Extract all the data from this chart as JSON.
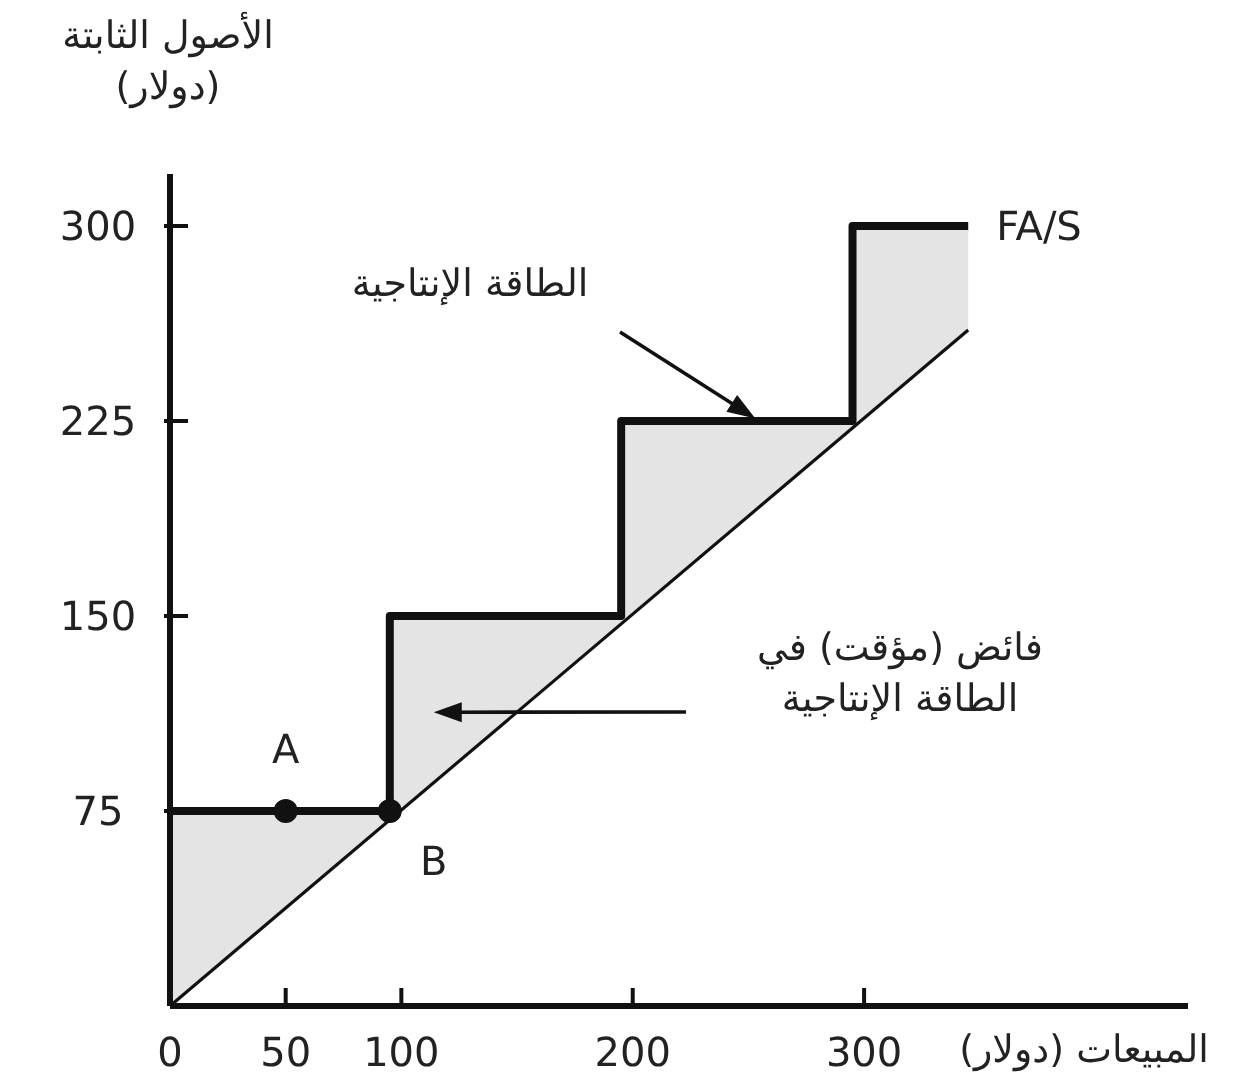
{
  "chart_data": {
    "type": "line",
    "xlabel": "المبيعات (دولار)",
    "ylabel": "الأصول الثابتة\n(دولار)",
    "xlim": [
      0,
      440
    ],
    "ylim": [
      0,
      320
    ],
    "xticks": [
      0,
      50,
      100,
      200,
      300
    ],
    "yticks": [
      75,
      150,
      225,
      300
    ],
    "series": [
      {
        "name": "FA/S",
        "type": "area",
        "color": "#111111",
        "x": [
          0,
          95,
          95,
          195,
          195,
          295,
          295,
          345
        ],
        "values": [
          75,
          75,
          150,
          150,
          225,
          225,
          300,
          300
        ]
      },
      {
        "color": "#111111",
        "x": [
          0,
          345
        ],
        "values": [
          0,
          260
        ]
      },
      {
        "type": "scatter",
        "color": "#111111",
        "x": [
          50,
          95
        ],
        "values": [
          75,
          75
        ]
      }
    ],
    "annotations": [
      {
        "text": "A",
        "x": 50,
        "y": 75
      },
      {
        "text": "B",
        "x": 95,
        "y": 75
      },
      "الطاقة الإنتاجية",
      "فائض (مؤقت) في\nالطاقة الإنتاجية"
    ]
  }
}
